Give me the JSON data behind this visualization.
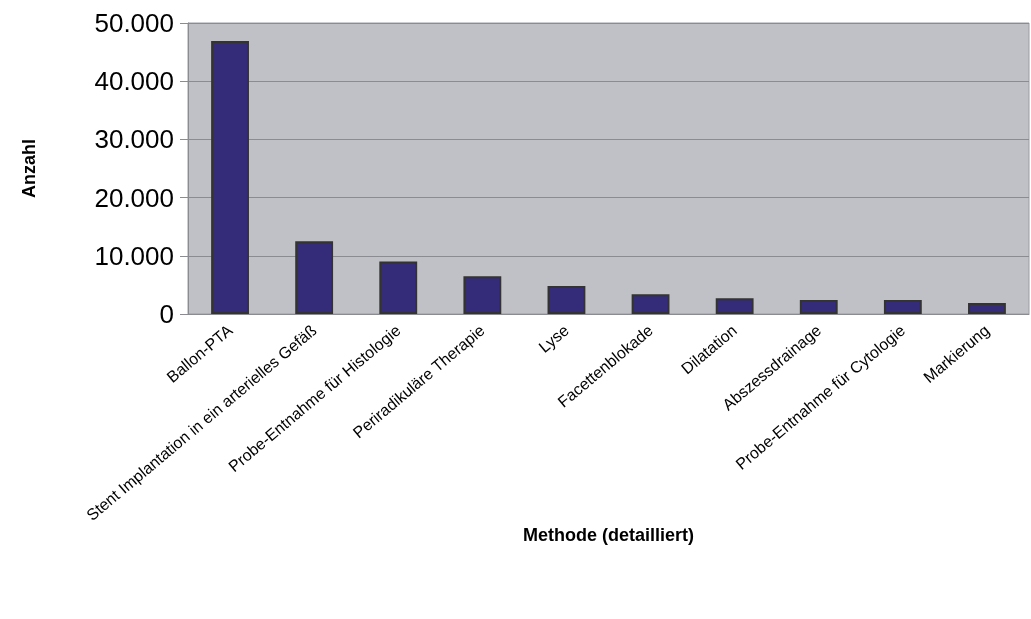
{
  "chart_data": {
    "type": "bar",
    "xlabel": "Methode (detailliert)",
    "ylabel": "Anzahl",
    "categories": [
      "Ballon-PTA",
      "Stent Implantation in ein arterielles Gefäß",
      "Probe-Entnahme für Histologie",
      "Periradikuläre Therapie",
      "Lyse",
      "Facettenblokade",
      "Dilatation",
      "Abszessdrainage",
      "Probe-Entnahme für Cytologie",
      "Markierung"
    ],
    "values": [
      46900,
      12500,
      9000,
      6500,
      4800,
      3400,
      2700,
      2400,
      2400,
      1900
    ],
    "color": "#342c78",
    "ylim": [
      0,
      50000
    ],
    "yticks": [
      {
        "value": 0,
        "label": "0"
      },
      {
        "value": 10000,
        "label": "10.000"
      },
      {
        "value": 20000,
        "label": "20.000"
      },
      {
        "value": 30000,
        "label": "30.000"
      },
      {
        "value": 40000,
        "label": "40.000"
      },
      {
        "value": 50000,
        "label": "50.000"
      }
    ],
    "grid": "y"
  }
}
